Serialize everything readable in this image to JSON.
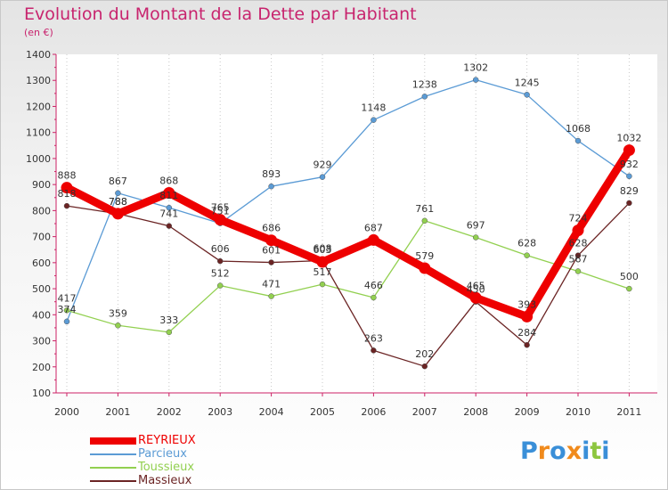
{
  "chart_data": {
    "type": "line",
    "title": "Evolution du Montant de la Dette par Habitant",
    "subtitle": "(en €)",
    "x": [
      "2000",
      "2001",
      "2002",
      "2003",
      "2004",
      "2005",
      "2006",
      "2007",
      "2008",
      "2009",
      "2010",
      "2011"
    ],
    "ylim": [
      100,
      1400
    ],
    "yticks": [
      100,
      200,
      300,
      400,
      500,
      600,
      700,
      800,
      900,
      1000,
      1100,
      1200,
      1300,
      1400
    ],
    "grid": "vertical dotted",
    "legend_position": "bottom-left",
    "series": [
      {
        "name": "REYRIEUX",
        "color": "#ee0000",
        "values": [
          888,
          788,
          868,
          765,
          686,
          603,
          687,
          579,
          465,
          393,
          724,
          1032
        ]
      },
      {
        "name": "Parcieux",
        "color": "#5b9bd5",
        "values": [
          374,
          867,
          811,
          751,
          893,
          929,
          1148,
          1238,
          1302,
          1245,
          1068,
          932
        ]
      },
      {
        "name": "Toussieux",
        "color": "#92d050",
        "values": [
          417,
          359,
          333,
          512,
          471,
          517,
          466,
          761,
          697,
          628,
          567,
          500
        ]
      },
      {
        "name": "Massieux",
        "color": "#6b2424",
        "values": [
          818,
          788,
          741,
          606,
          601,
          608,
          263,
          202,
          450,
          284,
          628,
          829
        ]
      }
    ]
  },
  "logo": {
    "text": "Proxiti",
    "letters": [
      "P",
      "r",
      "o",
      "x",
      "i",
      "t",
      "i"
    ],
    "colors": [
      "#3a8fd8",
      "#f08a1c",
      "#3a8fd8",
      "#f08a1c",
      "#3a8fd8",
      "#8dc63f",
      "#3a8fd8"
    ]
  }
}
